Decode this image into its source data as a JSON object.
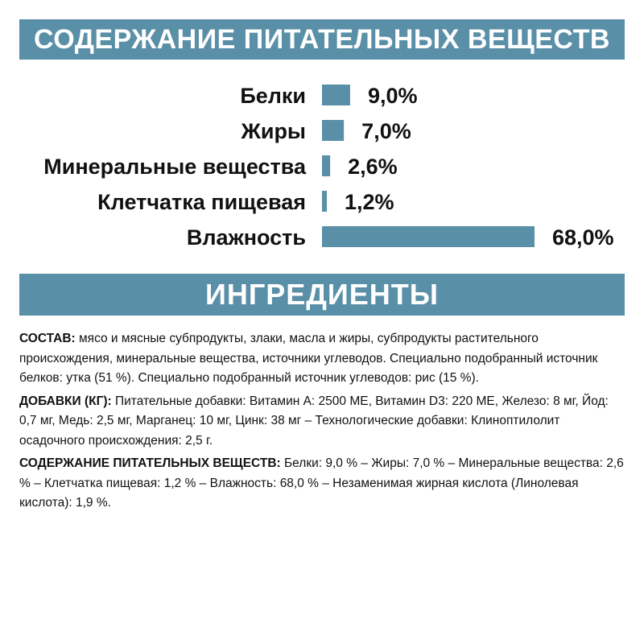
{
  "colors": {
    "accent": "#5a8fa8",
    "bar": "#5a8fa8",
    "text": "#111111"
  },
  "banners": {
    "nutrients": "СОДЕРЖАНИЕ ПИТАТЕЛЬНЫХ ВЕЩЕСТВ",
    "ingredients": "ИНГРЕДИЕНТЫ"
  },
  "chart_data": {
    "type": "bar",
    "orientation": "horizontal",
    "title": "СОДЕРЖАНИЕ ПИТАТЕЛЬНЫХ ВЕЩЕСТВ",
    "categories": [
      "Белки",
      "Жиры",
      "Минеральные вещества",
      "Клетчатка пищевая",
      "Влажность"
    ],
    "values": [
      9.0,
      7.0,
      2.6,
      1.2,
      68.0
    ],
    "value_labels": [
      "9,0%",
      "7,0%",
      "2,6%",
      "1,2%",
      "68,0%"
    ],
    "unit": "%",
    "xlim": [
      0,
      68
    ],
    "grid": false,
    "legend": "none"
  },
  "ingredients": {
    "composition_label": "СОСТАВ:",
    "composition_text": " мясо и мясные субпродукты, злаки, масла и жиры, субпродукты растительного происхождения, минеральные вещества, источники углеводов. Специально подобранный источник белков: утка (51 %). Специально подобранный источник углеводов: рис (15 %).",
    "additives_label": "ДОБАВКИ (КГ):",
    "additives_text": " Питательные добавки: Витамин A: 2500 МЕ, Витамин D3: 220 МЕ, Железо: 8 мг, Йод: 0,7 мг, Медь: 2,5 мг, Марганец: 10 мг, Цинк: 38 мг – Технологические добавки: Клиноптилолит осадочного происхождения: 2,5 г.",
    "nutrients_label": "СОДЕРЖАНИЕ ПИТАТЕЛЬНЫХ ВЕЩЕСТВ:",
    "nutrients_text": " Белки: 9,0 % – Жиры: 7,0 % – Минеральные вещества: 2,6 % – Клетчатка пищевая: 1,2 % – Влажность: 68,0 % – Незаменимая жирная кислота (Линолевая кислота): 1,9 %."
  }
}
